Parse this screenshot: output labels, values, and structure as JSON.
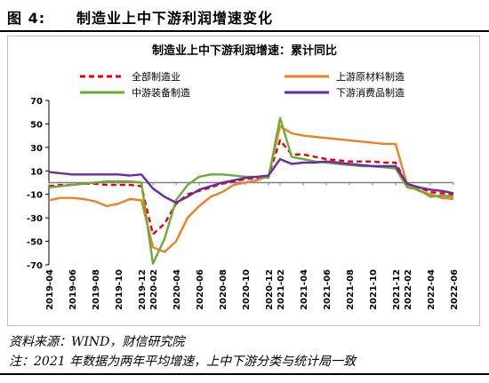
{
  "figure": {
    "number": "图 4:",
    "title": "制造业上中下游利润增速变化",
    "source": "资料来源：WIND，财信研究院",
    "note": "注：2021 年数据为两年平均增速，上中下游分类与统计局一致"
  },
  "chart_data": {
    "type": "line",
    "title": "制造业上中下游利润增速：累计同比",
    "ylim": [
      -70,
      70
    ],
    "yticks": [
      -70,
      -50,
      -30,
      -10,
      10,
      30,
      50,
      70
    ],
    "x": [
      "2019-04",
      "2019-05",
      "2019-06",
      "2019-07",
      "2019-08",
      "2019-09",
      "2019-10",
      "2019-11",
      "2019-12",
      "2020-02",
      "2020-03",
      "2020-04",
      "2020-05",
      "2020-06",
      "2020-07",
      "2020-08",
      "2020-09",
      "2020-10",
      "2020-11",
      "2020-12",
      "2021-02",
      "2021-03",
      "2021-04",
      "2021-05",
      "2021-06",
      "2021-07",
      "2021-08",
      "2021-09",
      "2021-10",
      "2021-11",
      "2021-12",
      "2022-02",
      "2022-03",
      "2022-04",
      "2022-05",
      "2022-06"
    ],
    "xtick_labels": [
      "2019-04",
      "2019-06",
      "2019-08",
      "2019-10",
      "2019-12",
      "2020-02",
      "2020-04",
      "2020-06",
      "2020-08",
      "2020-10",
      "2020-12",
      "2021-02",
      "2021-04",
      "2021-06",
      "2021-08",
      "2021-10",
      "2021-12",
      "2022-02",
      "2022-04",
      "2022-06"
    ],
    "grid": false,
    "legend": "top",
    "series": [
      {
        "name": "全部制造业",
        "color": "#e8000b",
        "dash": true,
        "values": [
          -3,
          -2,
          -2,
          -1,
          -1,
          -2,
          -2,
          -2,
          -3,
          -44,
          -35,
          -18,
          -10,
          -7,
          -4,
          -1,
          1,
          3,
          4,
          6,
          36,
          24,
          24,
          22,
          20,
          19,
          18,
          18,
          18,
          17,
          17,
          -2,
          -4,
          -8,
          -9,
          -10
        ]
      },
      {
        "name": "上游原材料制造",
        "color": "#f07f22",
        "dash": false,
        "values": [
          -15,
          -13,
          -13,
          -14,
          -16,
          -20,
          -18,
          -14,
          -15,
          -55,
          -59,
          -50,
          -30,
          -20,
          -12,
          -8,
          -2,
          0,
          2,
          6,
          48,
          42,
          40,
          39,
          38,
          37,
          36,
          35,
          34,
          33,
          33,
          -2,
          -7,
          -10,
          -13,
          -14
        ]
      },
      {
        "name": "中游装备制造",
        "color": "#6aab35",
        "dash": false,
        "values": [
          -4,
          -3,
          -2,
          -1,
          0,
          1,
          1,
          1,
          0,
          -69,
          -48,
          -15,
          -2,
          5,
          7,
          7,
          6,
          5,
          5,
          4,
          55,
          22,
          20,
          18,
          17,
          16,
          15,
          14,
          14,
          13,
          12,
          -4,
          -6,
          -12,
          -11,
          -12
        ]
      },
      {
        "name": "下游消费品制造",
        "color": "#6a2aa0",
        "dash": false,
        "values": [
          9,
          8,
          7,
          7,
          7,
          7,
          7,
          6,
          7,
          -5,
          -12,
          -17,
          -12,
          -6,
          -3,
          0,
          2,
          4,
          5,
          6,
          20,
          16,
          17,
          17,
          18,
          17,
          16,
          15,
          14,
          14,
          14,
          -1,
          -4,
          -6,
          -7,
          -9
        ]
      }
    ]
  }
}
